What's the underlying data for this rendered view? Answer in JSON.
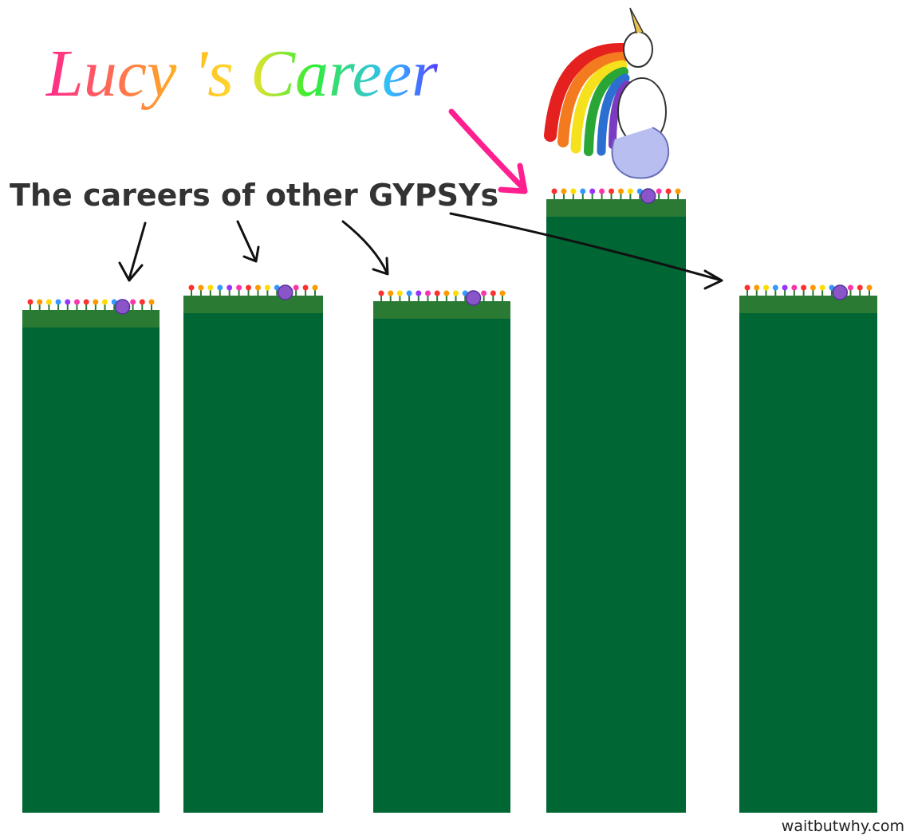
{
  "title": "Lucy 's Career",
  "label": "The careers of other GYPSYs",
  "credit": "waitbutwhy.com"
}
